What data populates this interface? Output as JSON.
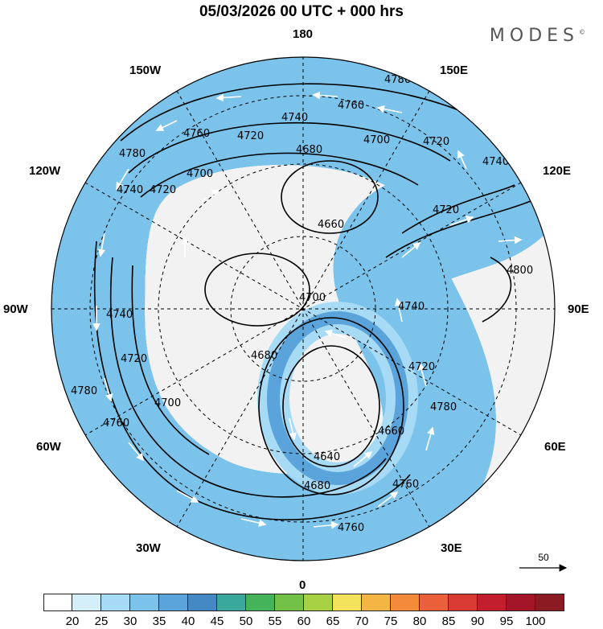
{
  "title": "05/03/2026  00 UTC  + 000 hrs",
  "brand": "MODES",
  "brand_mark": "©",
  "longitude_labels": {
    "top": "180",
    "top_right": "150E",
    "upper_right": "120E",
    "right": "90E",
    "lower_right": "60E",
    "bottom_right": "30E",
    "bottom": "0",
    "bottom_left": "30W",
    "lower_left": "60W",
    "left": "90W",
    "upper_left": "120W",
    "top_left": "150W"
  },
  "contour_labels": [
    "4780",
    "4760",
    "4760",
    "4740",
    "4720",
    "4700",
    "4680",
    "4760",
    "4720",
    "4740",
    "4720",
    "4660",
    "4700",
    "4800",
    "4780",
    "4740",
    "4720",
    "4700",
    "4680",
    "4640",
    "4660",
    "4680",
    "4760",
    "4760",
    "4740",
    "4720",
    "4780",
    "4760",
    "4740",
    "4720",
    "4700",
    "4780"
  ],
  "vector_reference": {
    "label": "50"
  },
  "colorbar": {
    "colors": [
      "#ffffff",
      "#d4effa",
      "#a6daf5",
      "#7bc3ea",
      "#5aa3db",
      "#4488c4",
      "#3aa89a",
      "#44b35a",
      "#72c046",
      "#a8d043",
      "#f2e15a",
      "#f5b545",
      "#f38b3a",
      "#e9603a",
      "#d93b34",
      "#c21e2e",
      "#a5152a",
      "#8c1a22"
    ],
    "labels": [
      "20",
      "25",
      "30",
      "35",
      "40",
      "45",
      "50",
      "55",
      "60",
      "65",
      "70",
      "75",
      "80",
      "85",
      "90",
      "95",
      "100"
    ]
  }
}
